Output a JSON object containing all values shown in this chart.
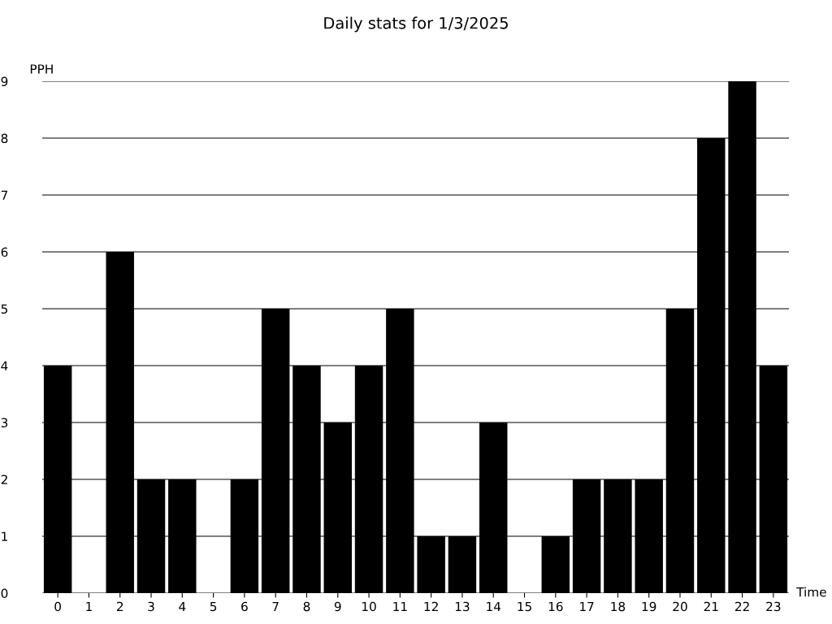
{
  "chart_data": {
    "type": "bar",
    "title": "Daily stats for 1/3/2025",
    "xlabel": "Time",
    "ylabel": "PPH",
    "categories": [
      "0",
      "1",
      "2",
      "3",
      "4",
      "5",
      "6",
      "7",
      "8",
      "9",
      "10",
      "11",
      "12",
      "13",
      "14",
      "15",
      "16",
      "17",
      "18",
      "19",
      "20",
      "21",
      "22",
      "23"
    ],
    "values": [
      4,
      0,
      6,
      2,
      2,
      0,
      2,
      5,
      4,
      3,
      4,
      5,
      1,
      1,
      3,
      0,
      1,
      2,
      2,
      2,
      5,
      8,
      9,
      4
    ],
    "color": "#000000",
    "ylim": [
      0,
      9
    ],
    "yticks": [
      0,
      1,
      2,
      3,
      4,
      5,
      6,
      7,
      8,
      9
    ],
    "grid": "y",
    "legend": false
  }
}
